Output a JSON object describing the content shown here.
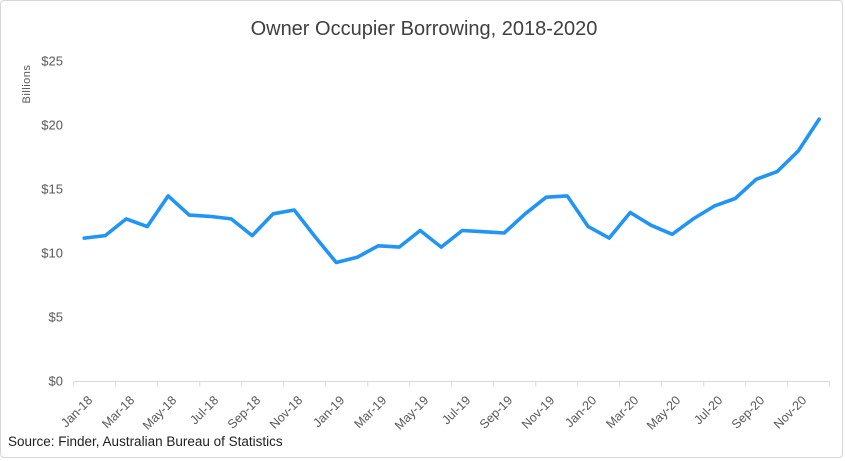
{
  "chart": {
    "source_note": "Source: Finder, Australian Bureau of Statistics"
  },
  "chart_data": {
    "type": "line",
    "title": "Owner Occupier Borrowing, 2018-2020",
    "xlabel": "",
    "ylabel": "Billions",
    "x": [
      "Jan-18",
      "Feb-18",
      "Mar-18",
      "Apr-18",
      "May-18",
      "Jun-18",
      "Jul-18",
      "Aug-18",
      "Sep-18",
      "Oct-18",
      "Nov-18",
      "Dec-18",
      "Jan-19",
      "Feb-19",
      "Mar-19",
      "Apr-19",
      "May-19",
      "Jun-19",
      "Jul-19",
      "Aug-19",
      "Sep-19",
      "Oct-19",
      "Nov-19",
      "Dec-19",
      "Jan-20",
      "Feb-20",
      "Mar-20",
      "Apr-20",
      "May-20",
      "Jun-20",
      "Jul-20",
      "Aug-20",
      "Sep-20",
      "Oct-20",
      "Nov-20",
      "Dec-20"
    ],
    "values": [
      11.2,
      11.4,
      12.7,
      12.1,
      14.5,
      13.0,
      12.9,
      12.7,
      11.4,
      13.1,
      13.4,
      11.3,
      9.3,
      9.7,
      10.6,
      10.5,
      11.8,
      10.5,
      11.8,
      11.7,
      11.6,
      13.1,
      14.4,
      14.5,
      12.1,
      11.2,
      13.2,
      12.2,
      11.5,
      12.7,
      13.7,
      14.3,
      15.8,
      16.4,
      18.0,
      20.5
    ],
    "x_tick_labels": [
      "Jan-18",
      "Mar-18",
      "May-18",
      "Jul-18",
      "Sep-18",
      "Nov-18",
      "Jan-19",
      "Mar-19",
      "May-19",
      "Jul-19",
      "Sep-19",
      "Nov-19",
      "Jan-20",
      "Mar-20",
      "May-20",
      "Jul-20",
      "Sep-20",
      "Nov-20"
    ],
    "y_ticks": [
      0,
      5,
      10,
      15,
      20,
      25
    ],
    "y_tick_prefix": "$",
    "ylim": [
      0,
      25
    ],
    "grid": false,
    "legend": "none",
    "line_color": "#2095f6",
    "axis_color": "#d9d9d9",
    "tick_label_color": "#595959",
    "title_color": "#404040"
  }
}
